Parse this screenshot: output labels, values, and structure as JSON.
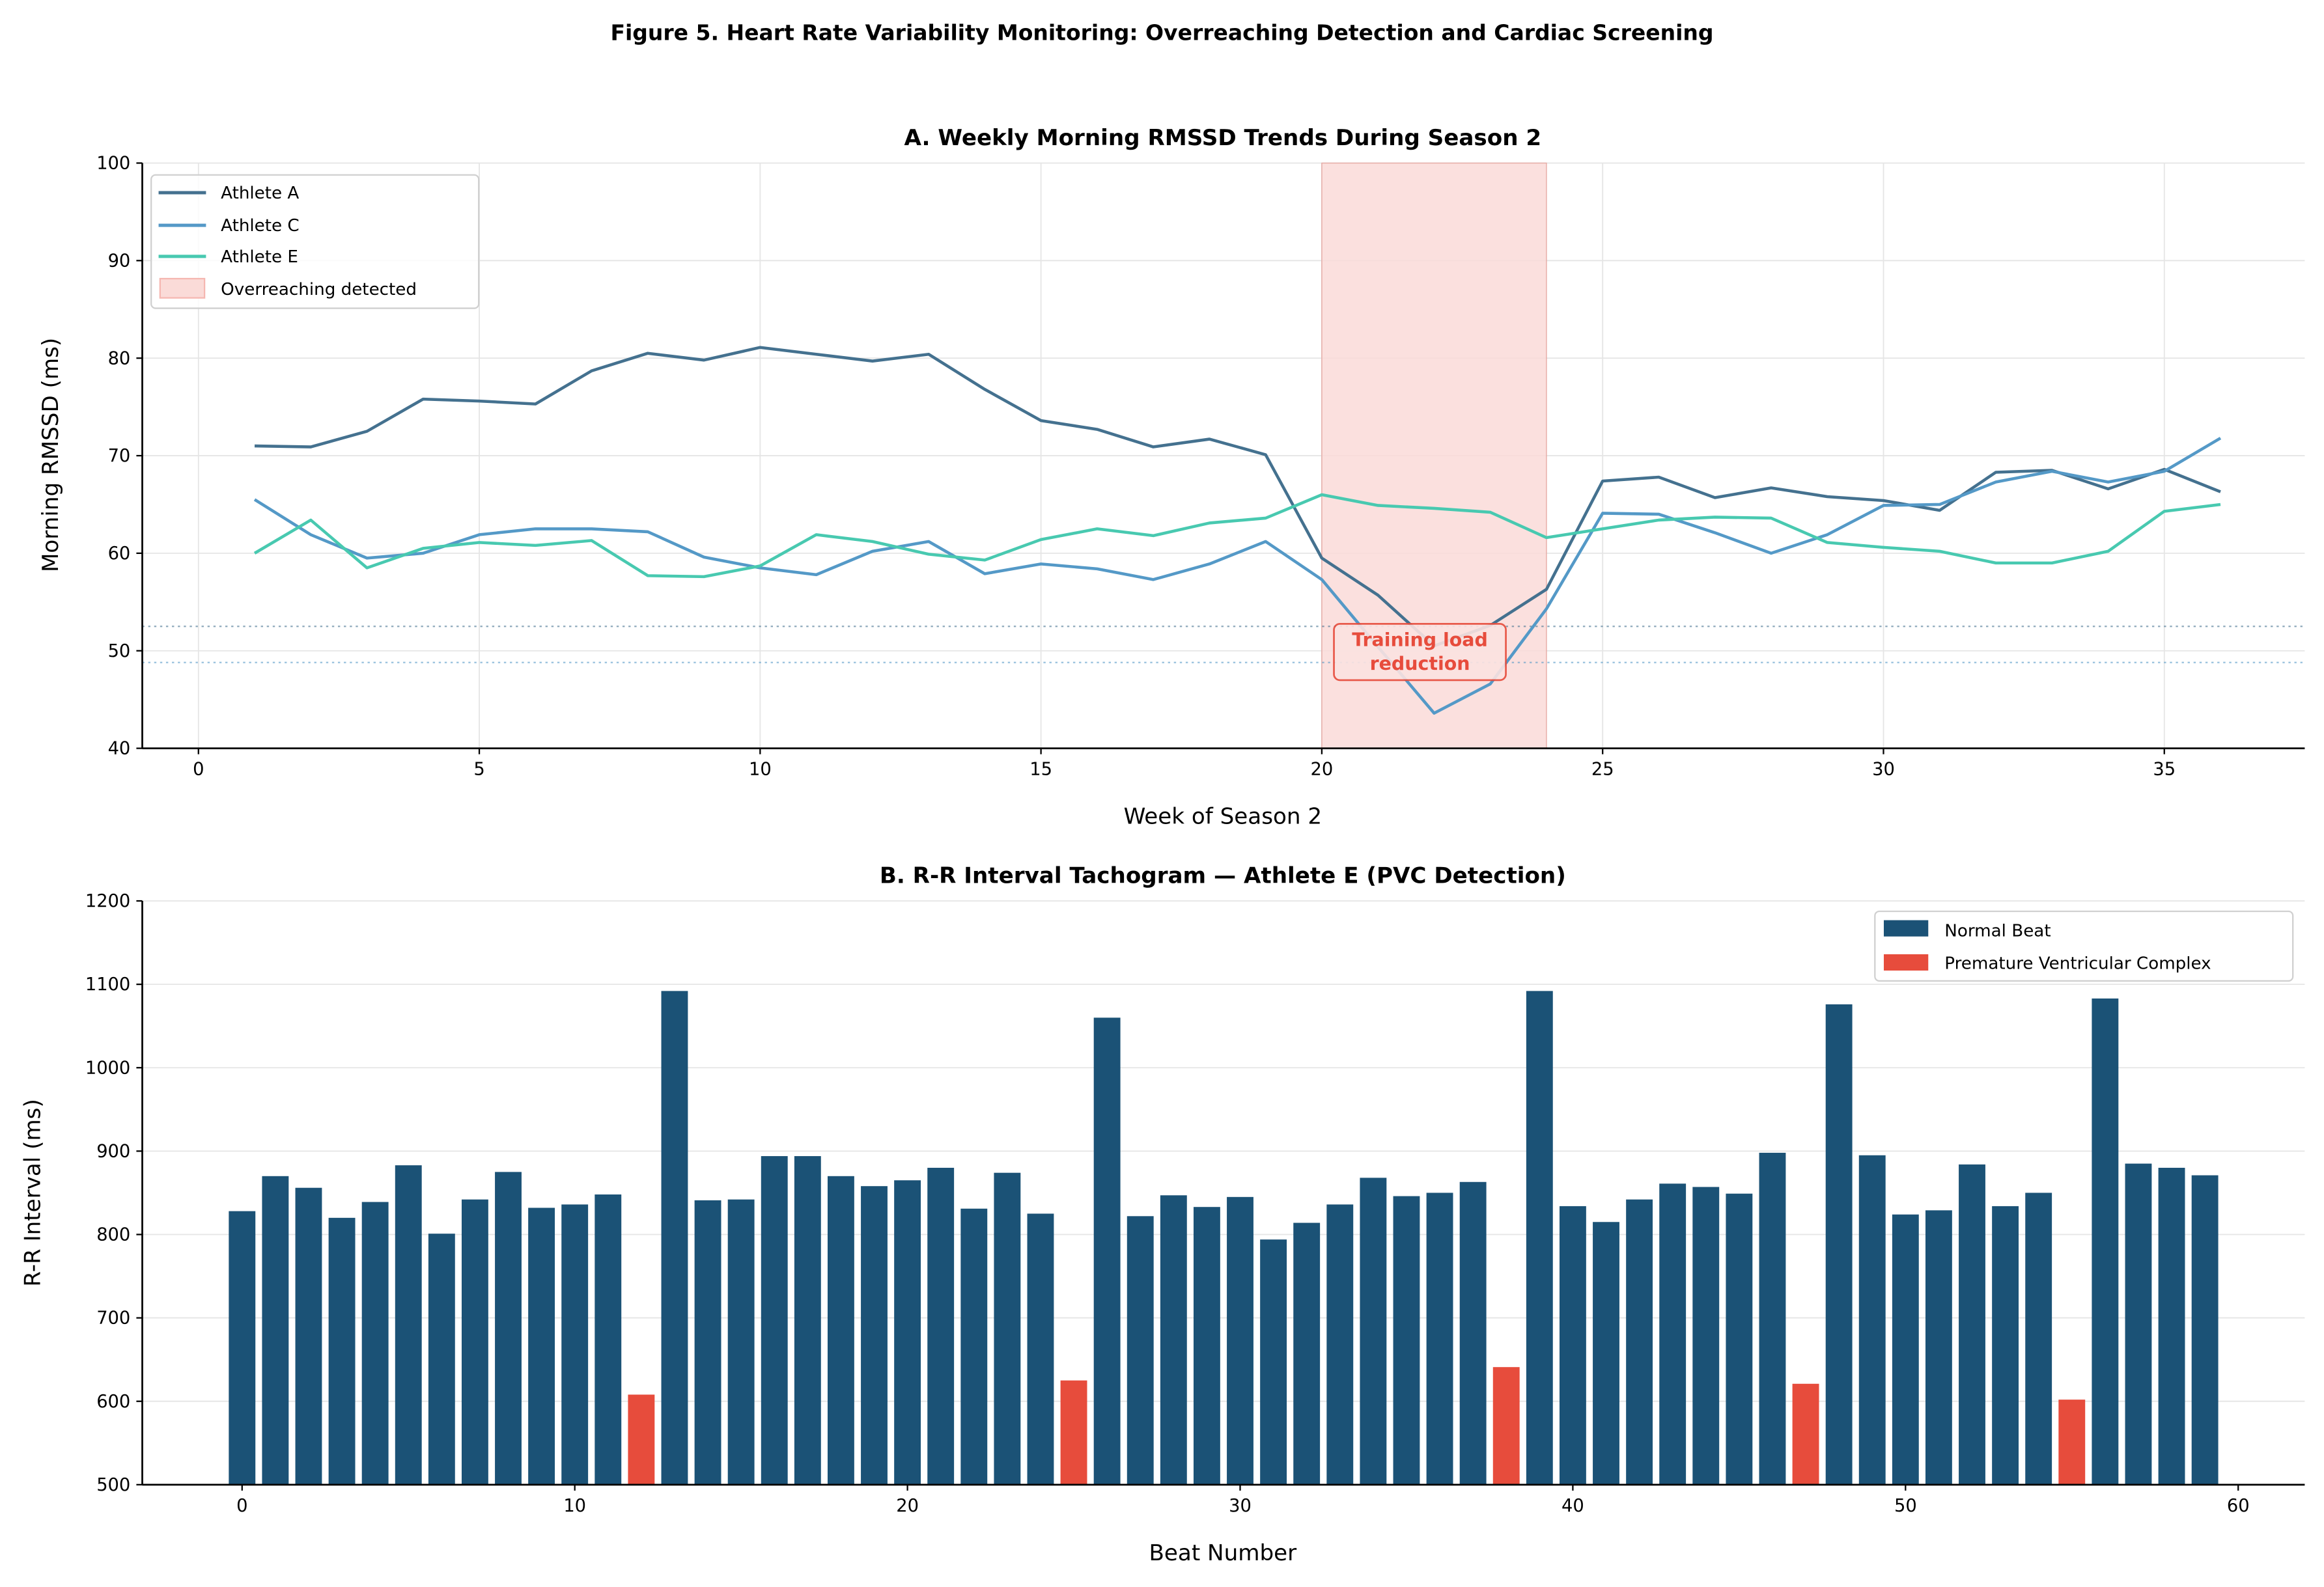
{
  "figure_title": "Figure 5. Heart Rate Variability Monitoring: Overreaching Detection and Cardiac Screening",
  "colors": {
    "athlete_a": "#44718f",
    "athlete_c": "#5499c7",
    "athlete_e": "#48c9b0",
    "shade": "#f5b7b1",
    "normal_beat": "#1b5276",
    "pvc": "#e74c3c",
    "annotation": "#e74c3c"
  },
  "chart_data": [
    {
      "type": "line",
      "title": "A. Weekly Morning RMSSD Trends During Season 2",
      "xlabel": "Week of Season 2",
      "ylabel": "Morning RMSSD (ms)",
      "xlim": [
        -1,
        37.5
      ],
      "ylim": [
        40,
        100
      ],
      "xticks": [
        0,
        5,
        10,
        15,
        20,
        25,
        30,
        35
      ],
      "yticks": [
        40,
        50,
        60,
        70,
        80,
        90,
        100
      ],
      "grid": true,
      "legend": "top-left",
      "x": [
        1,
        2,
        3,
        4,
        5,
        6,
        7,
        8,
        9,
        10,
        11,
        12,
        13,
        14,
        15,
        16,
        17,
        18,
        19,
        20,
        21,
        22,
        23,
        24,
        25,
        26,
        27,
        28,
        29,
        30,
        31,
        32,
        33,
        34,
        35,
        36
      ],
      "series": [
        {
          "name": "Athlete A",
          "color_key": "athlete_a",
          "values": [
            71.0,
            70.9,
            72.5,
            75.8,
            75.6,
            75.3,
            78.7,
            80.5,
            79.8,
            81.1,
            80.4,
            79.7,
            80.4,
            76.8,
            73.6,
            72.7,
            70.9,
            71.7,
            70.1,
            59.5,
            55.7,
            50.5,
            52.6,
            56.3,
            67.4,
            67.8,
            65.7,
            66.7,
            65.8,
            65.4,
            64.4,
            68.3,
            68.5,
            66.6,
            68.6,
            66.3
          ]
        },
        {
          "name": "Athlete C",
          "color_key": "athlete_c",
          "values": [
            65.5,
            61.9,
            59.5,
            60.0,
            61.9,
            62.5,
            62.5,
            62.2,
            59.6,
            58.5,
            57.8,
            60.2,
            61.2,
            57.9,
            58.9,
            58.4,
            57.3,
            58.9,
            61.2,
            57.3,
            50.4,
            43.6,
            46.6,
            54.3,
            64.1,
            64.0,
            62.1,
            60.0,
            61.9,
            64.9,
            65.0,
            67.3,
            68.4,
            67.3,
            68.4,
            71.8
          ]
        },
        {
          "name": "Athlete E",
          "color_key": "athlete_e",
          "values": [
            60.0,
            63.4,
            58.5,
            60.5,
            61.1,
            60.8,
            61.3,
            57.7,
            57.6,
            58.7,
            61.9,
            61.2,
            59.9,
            59.3,
            61.4,
            62.5,
            61.8,
            63.1,
            63.6,
            66.0,
            64.9,
            64.6,
            64.2,
            61.6,
            62.5,
            63.4,
            63.7,
            63.6,
            61.1,
            60.6,
            60.2,
            59.0,
            59.0,
            60.2,
            64.3,
            65.0
          ]
        }
      ],
      "shaded_region": {
        "label": "Overreaching detected",
        "x_start": 20,
        "x_end": 24
      },
      "reference_lines": [
        {
          "y": 52.5,
          "color_key": "athlete_a",
          "style": "dotted"
        },
        {
          "y": 48.8,
          "color_key": "athlete_c",
          "style": "dotted"
        }
      ],
      "annotation": {
        "lines": [
          "Training load",
          "reduction"
        ],
        "x": 22,
        "y": 48.8
      }
    },
    {
      "type": "bar",
      "title": "B. R-R Interval Tachogram — Athlete E (PVC Detection)",
      "xlabel": "Beat Number",
      "ylabel": "R-R Interval (ms)",
      "xlim": [
        -3,
        62
      ],
      "ylim": [
        500,
        1200
      ],
      "xticks": [
        0,
        10,
        20,
        30,
        40,
        50,
        60
      ],
      "yticks": [
        500,
        600,
        700,
        800,
        900,
        1000,
        1100,
        1200
      ],
      "grid": true,
      "legend": "top-right",
      "legend_entries": [
        {
          "label": "Normal Beat",
          "color_key": "normal_beat"
        },
        {
          "label": "Premature Ventricular Complex",
          "color_key": "pvc"
        }
      ],
      "values": [
        828,
        870,
        856,
        820,
        839,
        883,
        801,
        842,
        875,
        832,
        836,
        848,
        608,
        1092,
        841,
        842,
        894,
        894,
        870,
        858,
        865,
        880,
        831,
        874,
        825,
        625,
        1060,
        822,
        847,
        833,
        845,
        794,
        814,
        836,
        868,
        846,
        850,
        863,
        641,
        1092,
        834,
        815,
        842,
        861,
        857,
        849,
        898,
        621,
        1076,
        895,
        824,
        829,
        884,
        834,
        850,
        602,
        1083,
        885,
        880,
        871
      ],
      "pvc_beats": [
        12,
        25,
        38,
        47,
        55
      ]
    }
  ]
}
